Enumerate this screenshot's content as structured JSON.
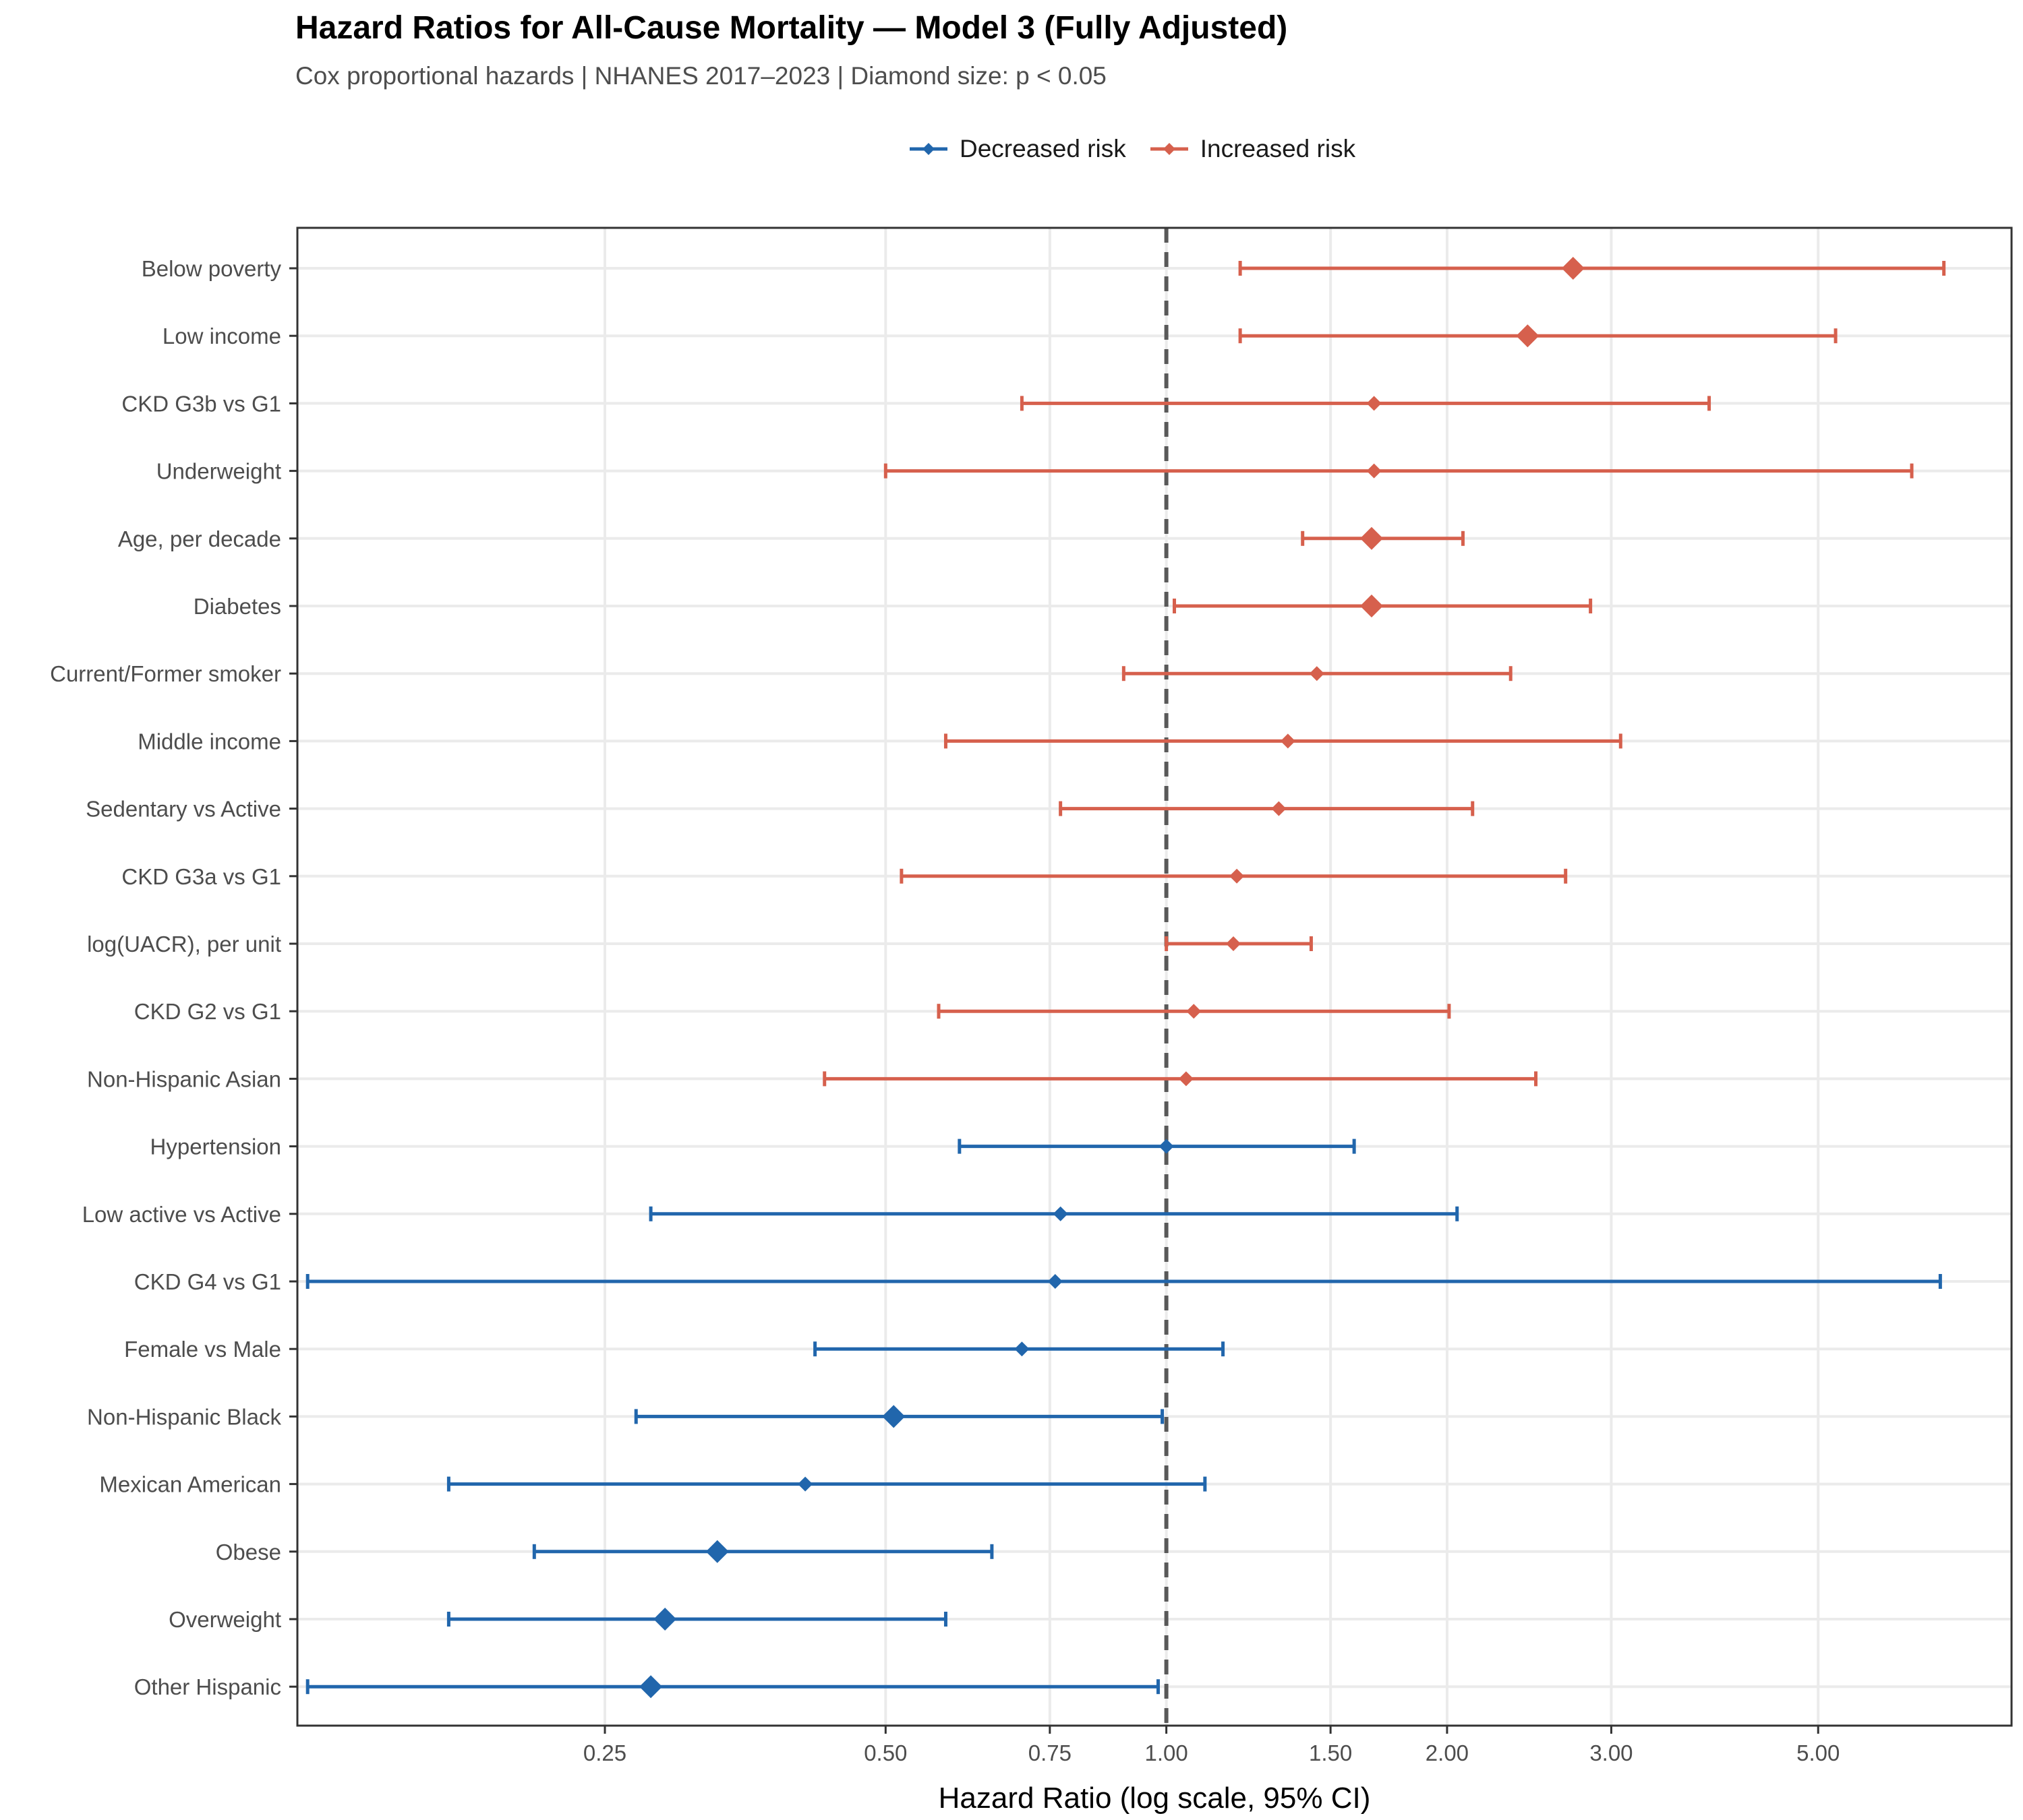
{
  "chart_data": {
    "type": "forest",
    "title": "Hazard Ratios for All-Cause Mortality — Model 3 (Fully Adjusted)",
    "subtitle": "Cox proportional hazards | NHANES 2017–2023 | Diamond size: p < 0.05",
    "xlabel": "Hazard Ratio (log scale, 95% CI)",
    "ylabel": "",
    "x_scale": "log",
    "xlim": [
      0.117,
      8.06
    ],
    "x_ticks": [
      "0.25",
      "0.50",
      "0.75",
      "1.00",
      "1.50",
      "2.00",
      "3.00",
      "5.00"
    ],
    "reference_line": 1.0,
    "legend": [
      {
        "name": "Decreased risk",
        "color": "#2166ac"
      },
      {
        "name": "Increased risk",
        "color": "#d6604d"
      }
    ],
    "legend_position": "top",
    "grid": true,
    "series": [
      {
        "label": "Below poverty",
        "hr": 2.73,
        "lower": 1.2,
        "upper": 6.82,
        "significant": true,
        "group": "Increased risk"
      },
      {
        "label": "Low income",
        "hr": 2.44,
        "lower": 1.2,
        "upper": 5.22,
        "significant": true,
        "group": "Increased risk"
      },
      {
        "label": "CKD G3b vs G1",
        "hr": 1.67,
        "lower": 0.7,
        "upper": 3.82,
        "significant": false,
        "group": "Increased risk"
      },
      {
        "label": "Underweight",
        "hr": 1.67,
        "lower": 0.5,
        "upper": 6.3,
        "significant": false,
        "group": "Increased risk"
      },
      {
        "label": "Age, per decade",
        "hr": 1.66,
        "lower": 1.4,
        "upper": 2.08,
        "significant": true,
        "group": "Increased risk"
      },
      {
        "label": "Diabetes",
        "hr": 1.66,
        "lower": 1.02,
        "upper": 2.85,
        "significant": true,
        "group": "Increased risk"
      },
      {
        "label": "Current/Former smoker",
        "hr": 1.45,
        "lower": 0.9,
        "upper": 2.34,
        "significant": false,
        "group": "Increased risk"
      },
      {
        "label": "Middle income",
        "hr": 1.35,
        "lower": 0.58,
        "upper": 3.07,
        "significant": false,
        "group": "Increased risk"
      },
      {
        "label": "Sedentary vs Active",
        "hr": 1.32,
        "lower": 0.77,
        "upper": 2.13,
        "significant": false,
        "group": "Increased risk"
      },
      {
        "label": "CKD G3a vs G1",
        "hr": 1.19,
        "lower": 0.52,
        "upper": 2.68,
        "significant": false,
        "group": "Increased risk"
      },
      {
        "label": "log(UACR), per unit",
        "hr": 1.18,
        "lower": 1.0,
        "upper": 1.43,
        "significant": false,
        "group": "Increased risk"
      },
      {
        "label": "CKD G2 vs G1",
        "hr": 1.07,
        "lower": 0.57,
        "upper": 2.01,
        "significant": false,
        "group": "Increased risk"
      },
      {
        "label": "Non-Hispanic Asian",
        "hr": 1.05,
        "lower": 0.43,
        "upper": 2.49,
        "significant": false,
        "group": "Increased risk"
      },
      {
        "label": "Hypertension",
        "hr": 1.0,
        "lower": 0.6,
        "upper": 1.59,
        "significant": false,
        "group": "Decreased risk"
      },
      {
        "label": "Low active vs Active",
        "hr": 0.77,
        "lower": 0.28,
        "upper": 2.05,
        "significant": false,
        "group": "Decreased risk"
      },
      {
        "label": "CKD G4 vs G1",
        "hr": 0.76,
        "lower": 0.12,
        "upper": 6.76,
        "significant": false,
        "group": "Decreased risk"
      },
      {
        "label": "Female vs Male",
        "hr": 0.7,
        "lower": 0.42,
        "upper": 1.15,
        "significant": false,
        "group": "Decreased risk"
      },
      {
        "label": "Non-Hispanic Black",
        "hr": 0.51,
        "lower": 0.27,
        "upper": 0.99,
        "significant": true,
        "group": "Decreased risk"
      },
      {
        "label": "Mexican American",
        "hr": 0.41,
        "lower": 0.17,
        "upper": 1.1,
        "significant": false,
        "group": "Decreased risk"
      },
      {
        "label": "Obese",
        "hr": 0.33,
        "lower": 0.21,
        "upper": 0.65,
        "significant": true,
        "group": "Decreased risk"
      },
      {
        "label": "Overweight",
        "hr": 0.29,
        "lower": 0.17,
        "upper": 0.58,
        "significant": true,
        "group": "Decreased risk"
      },
      {
        "label": "Other Hispanic",
        "hr": 0.28,
        "lower": 0.12,
        "upper": 0.98,
        "significant": true,
        "group": "Decreased risk"
      }
    ]
  }
}
